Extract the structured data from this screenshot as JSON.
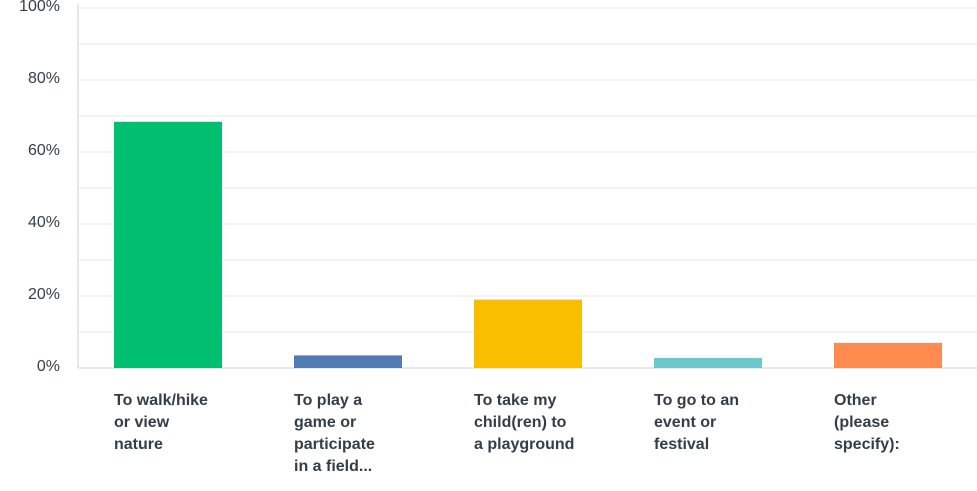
{
  "chart_data": {
    "type": "bar",
    "categories": [
      "To walk/hike\nor view\nnature",
      "To play a\ngame or\nparticipate\nin a field...",
      "To take my\nchild(ren) to\na playground",
      "To go to an\nevent or\nfestival",
      "Other\n(please\nspecify):"
    ],
    "values": [
      68.4,
      3.5,
      19.0,
      2.8,
      7.0
    ],
    "colors": [
      "#00bf6f",
      "#507cb6",
      "#f9be00",
      "#6bc8cd",
      "#ff8b4f"
    ],
    "ylim": [
      0,
      100
    ],
    "yticks": [
      "0%",
      "20%",
      "40%",
      "60%",
      "80%",
      "100%"
    ],
    "grid": true
  }
}
